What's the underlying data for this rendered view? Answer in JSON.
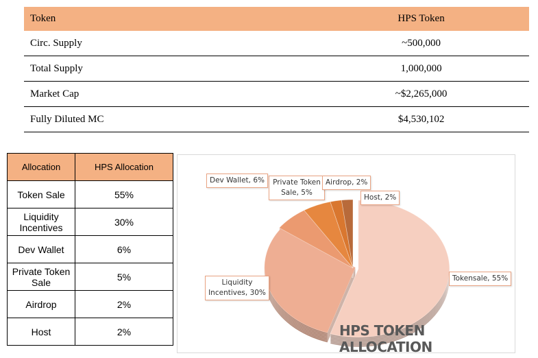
{
  "token_table": {
    "headers": [
      "Token",
      "HPS Token"
    ],
    "rows": [
      [
        "Circ. Supply",
        "~500,000"
      ],
      [
        "Total Supply",
        "1,000,000"
      ],
      [
        "Market Cap",
        "~$2,265,000"
      ],
      [
        "Fully Diluted MC",
        "$4,530,102"
      ]
    ]
  },
  "allocation_table": {
    "headers": [
      "Allocation",
      "HPS Allocation"
    ],
    "rows": [
      [
        "Token Sale",
        "55%"
      ],
      [
        "Liquidity Incentives",
        "30%"
      ],
      [
        "Dev Wallet",
        "6%"
      ],
      [
        "Private Token Sale",
        "5%"
      ],
      [
        "Airdrop",
        "2%"
      ],
      [
        "Host",
        "2%"
      ]
    ]
  },
  "chart_data": {
    "type": "pie",
    "title": "HPS TOKEN ALLOCATION",
    "categories": [
      "Tokensale",
      "Liquidity Incentives",
      "Dev Wallet",
      "Private Token Sale",
      "Airdrop",
      "Host"
    ],
    "values": [
      55,
      30,
      6,
      5,
      2,
      2
    ],
    "data_labels": [
      "Tokensale, 55%",
      "Liquidity Incentives, 30%",
      "Dev Wallet, 6%",
      "Private Token Sale, 5%",
      "Airdrop, 2%",
      "Host, 2%"
    ],
    "colors": [
      "#f6cfc0",
      "#eeae93",
      "#eb9a70",
      "#e6873f",
      "#d9772f",
      "#b86a3a"
    ],
    "style": "3d-exploded"
  }
}
